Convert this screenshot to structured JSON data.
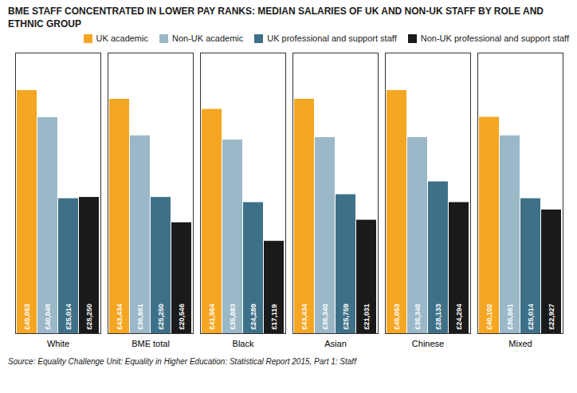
{
  "chart_data": {
    "type": "bar",
    "title": "BME STAFF CONCENTRATED IN LOWER PAY RANKS: MEDIAN SALARIES OF UK AND NON-UK STAFF BY ROLE AND ETHNIC GROUP",
    "annotations": [
      "Source: Equality Challenge Unit: Equality in Higher Education: Statistical Report 2015, Part 1: Staff"
    ],
    "categories": [
      "White",
      "BME total",
      "Black",
      "Asian",
      "Chinese",
      "Mixed"
    ],
    "series": [
      {
        "name": "UK academic",
        "color": "#F5A623",
        "values": [
          45053,
          43434,
          41564,
          43434,
          45053,
          40102
        ],
        "value_labels": [
          "£45,053",
          "£43,434",
          "£41,564",
          "£43,434",
          "£45,053",
          "£40,102"
        ]
      },
      {
        "name": "Non-UK academic",
        "color": "#9BB8C8",
        "values": [
          40040,
          36661,
          35883,
          36340,
          36340,
          36661
        ],
        "value_labels": [
          "£40,040",
          "£36,661",
          "£35,883",
          "£36,340",
          "£36,340",
          "£36,661"
        ]
      },
      {
        "name": "UK professional and support staff",
        "color": "#3E7188",
        "values": [
          25014,
          25250,
          24289,
          25759,
          28133,
          25014
        ],
        "value_labels": [
          "£25,014",
          "£25,250",
          "£24,289",
          "£25,759",
          "£28,133",
          "£25,014"
        ]
      },
      {
        "name": "Non-UK professional and support staff",
        "color": "#1A1A1A",
        "values": [
          25250,
          20546,
          17119,
          21031,
          24294,
          22927
        ],
        "value_labels": [
          "£25,250",
          "£20,546",
          "£17,119",
          "£21,031",
          "£24,294",
          "£22,927"
        ]
      }
    ],
    "ylim": [
      0,
      52000
    ],
    "grid": false,
    "legend": "upper right",
    "data_labels": true,
    "tick_labels": "x"
  }
}
